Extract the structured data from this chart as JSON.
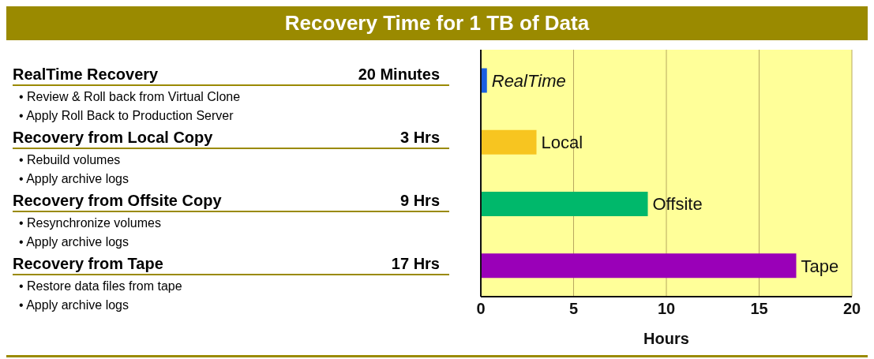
{
  "chart_data": {
    "type": "bar",
    "orientation": "horizontal",
    "title": "Recovery Time for 1 TB of Data",
    "xlabel": "Hours",
    "categories": [
      "RealTime",
      "Local",
      "Offsite",
      "Tape"
    ],
    "values": [
      0.33,
      3,
      9,
      17
    ],
    "colors": [
      "#1a5fe0",
      "#f7c520",
      "#00b86b",
      "#9a00b8"
    ],
    "xlim": [
      0,
      20
    ],
    "xticks": [
      0,
      5,
      10,
      15,
      20
    ],
    "grid": "x",
    "tick_labels": "x",
    "annotations": [
      "RealTime Recovery",
      "20 Minutes",
      "• Review & Roll back from Virtual Clone",
      "• Apply Roll Back to Production Server",
      "Recovery from Local Copy",
      "3 Hrs",
      "• Rebuild volumes",
      "• Apply archive logs",
      "Recovery from Offsite Copy",
      "9 Hrs",
      "• Resynchronize volumes",
      "• Apply archive logs",
      "Recovery from Tape",
      "17 Hrs",
      "• Restore data files from tape",
      "• Apply archive logs"
    ]
  }
}
